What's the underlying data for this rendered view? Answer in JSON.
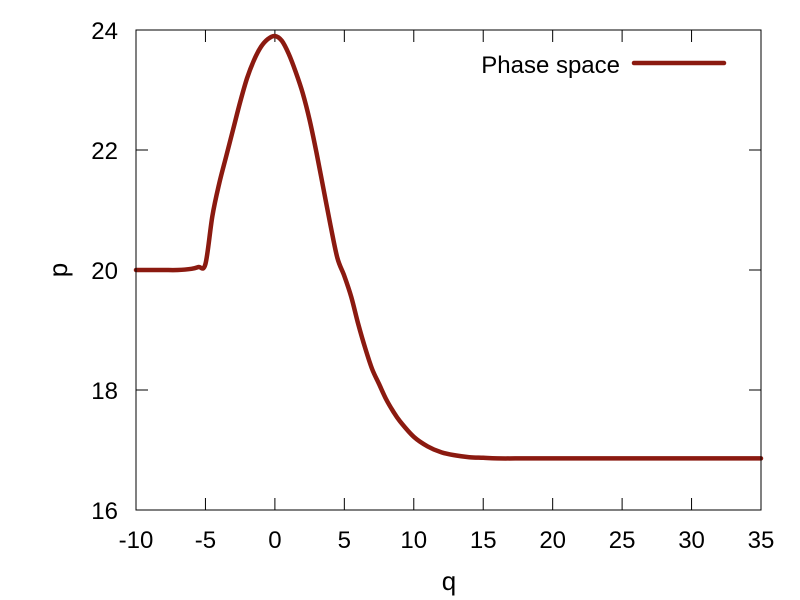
{
  "chart_data": {
    "type": "line",
    "xlabel": "q",
    "ylabel": "p",
    "xlim": [
      -10,
      35
    ],
    "ylim": [
      16,
      24
    ],
    "xticks": [
      "-10",
      "-5",
      "0",
      "5",
      "10",
      "15",
      "20",
      "25",
      "30",
      "35"
    ],
    "yticks": [
      "16",
      "18",
      "20",
      "22",
      "24"
    ],
    "grid": false,
    "legend_position": "top-right",
    "series": [
      {
        "name": "Phase space",
        "color": "#8b1a10",
        "points": [
          [
            -10,
            20.0
          ],
          [
            -9,
            20.0
          ],
          [
            -8,
            20.0
          ],
          [
            -7,
            20.0
          ],
          [
            -6,
            20.02
          ],
          [
            -5.5,
            20.05
          ],
          [
            -5,
            20.1
          ],
          [
            -4.5,
            20.9
          ],
          [
            -4,
            21.45
          ],
          [
            -3.5,
            21.9
          ],
          [
            -3,
            22.35
          ],
          [
            -2.5,
            22.8
          ],
          [
            -2,
            23.2
          ],
          [
            -1.5,
            23.5
          ],
          [
            -1,
            23.72
          ],
          [
            -0.5,
            23.85
          ],
          [
            0,
            23.9
          ],
          [
            0.5,
            23.82
          ],
          [
            1,
            23.6
          ],
          [
            1.5,
            23.3
          ],
          [
            2,
            22.95
          ],
          [
            2.5,
            22.5
          ],
          [
            3,
            21.95
          ],
          [
            3.5,
            21.35
          ],
          [
            4,
            20.75
          ],
          [
            4.5,
            20.2
          ],
          [
            5,
            19.9
          ],
          [
            5.5,
            19.55
          ],
          [
            6,
            19.1
          ],
          [
            6.5,
            18.7
          ],
          [
            7,
            18.35
          ],
          [
            7.5,
            18.1
          ],
          [
            8,
            17.85
          ],
          [
            8.5,
            17.65
          ],
          [
            9,
            17.48
          ],
          [
            10,
            17.22
          ],
          [
            11,
            17.06
          ],
          [
            12,
            16.96
          ],
          [
            13,
            16.91
          ],
          [
            14,
            16.88
          ],
          [
            15,
            16.87
          ],
          [
            16,
            16.86
          ],
          [
            18,
            16.86
          ],
          [
            20,
            16.86
          ],
          [
            25,
            16.86
          ],
          [
            30,
            16.86
          ],
          [
            35,
            16.86
          ]
        ]
      }
    ]
  }
}
